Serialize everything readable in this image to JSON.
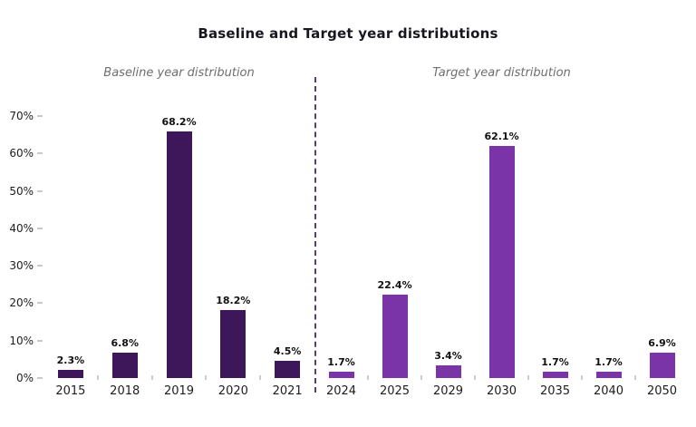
{
  "title": "Baseline and Target year distributions",
  "colors": {
    "baseline_bar": "#3E165A",
    "target_bar": "#7B33A8",
    "divider": "#5c3a78",
    "subtitle_text": "#6e6e6e",
    "title_text": "#17171f",
    "tick_mark": "#c9c9c9"
  },
  "chart_data": {
    "type": "bar",
    "title": "Baseline and Target year distributions",
    "xlabel": "",
    "ylabel": "",
    "ylim": [
      0,
      70
    ],
    "ytick_labels": [
      "0%",
      "10%",
      "20%",
      "30%",
      "40%",
      "50%",
      "60%",
      "70%"
    ],
    "grid": false,
    "legend": false,
    "divider": "dashed vertical line between the two groups",
    "groups": [
      {
        "name": "Baseline year distribution",
        "color": "#3E165A",
        "categories": [
          "2015",
          "2018",
          "2019",
          "2020",
          "2021"
        ],
        "values": [
          2.3,
          6.8,
          68.2,
          18.2,
          4.5
        ],
        "labels": [
          "2.3%",
          "6.8%",
          "68.2%",
          "18.2%",
          "4.5%"
        ]
      },
      {
        "name": "Target year distribution",
        "color": "#7B33A8",
        "categories": [
          "2024",
          "2025",
          "2029",
          "2030",
          "2035",
          "2040",
          "2050"
        ],
        "values": [
          1.7,
          22.4,
          3.4,
          62.1,
          1.7,
          1.7,
          6.9
        ],
        "labels": [
          "1.7%",
          "22.4%",
          "3.4%",
          "62.1%",
          "1.7%",
          "1.7%",
          "6.9%"
        ]
      }
    ]
  }
}
